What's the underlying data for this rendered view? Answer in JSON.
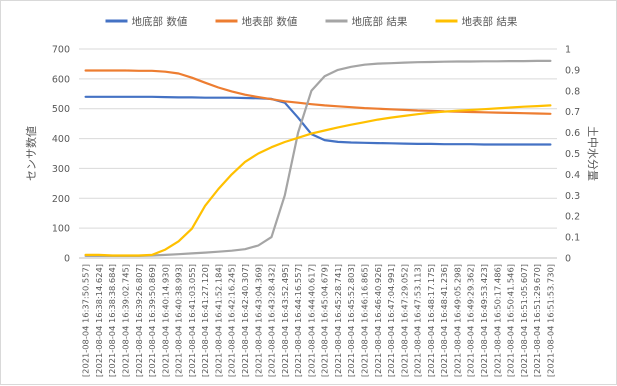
{
  "chart_data": {
    "type": "line",
    "title": "",
    "ylabel_left": "センサ数値",
    "ylabel_right": "土中水分量",
    "ylim_left": [
      0,
      700
    ],
    "ylim_right": [
      0,
      1
    ],
    "yticks_left": [
      "0",
      "100",
      "200",
      "300",
      "400",
      "500",
      "600",
      "700"
    ],
    "yticks_right": [
      "0",
      "0.1",
      "0.2",
      "0.3",
      "0.4",
      "0.5",
      "0.6",
      "0.7",
      "0.8",
      "0.9",
      "1"
    ],
    "legend_position": "top",
    "grid": true,
    "x_tick_labels": [
      "[2021-08-04 16:37:50.557]",
      "[2021-08-04 16:38:14.624]",
      "[2021-08-04 16:38:38.684]",
      "[2021-08-04 16:39:02.745]",
      "[2021-08-04 16:39:26.807]",
      "[2021-08-04 16:39:50.869]",
      "[2021-08-04 16:40:14.930]",
      "[2021-08-04 16:40:38.993]",
      "[2021-08-04 16:41:03.055]",
      "[2021-08-04 16:41:27.120]",
      "[2021-08-04 16:41:52.184]",
      "[2021-08-04 16:42:16.245]",
      "[2021-08-04 16:42:40.307]",
      "[2021-08-04 16:43:04.369]",
      "[2021-08-04 16:43:28.432]",
      "[2021-08-04 16:43:52.495]",
      "[2021-08-04 16:44:16.557]",
      "[2021-08-04 16:44:40.617]",
      "[2021-08-04 16:45:04.679]",
      "[2021-08-04 16:45:28.741]",
      "[2021-08-04 16:45:52.803]",
      "[2021-08-04 16:46:16.865]",
      "[2021-08-04 16:46:40.926]",
      "[2021-08-04 16:47:04.991]",
      "[2021-08-04 16:47:29.052]",
      "[2021-08-04 16:47:53.113]",
      "[2021-08-04 16:48:17.175]",
      "[2021-08-04 16:48:41.236]",
      "[2021-08-04 16:49:05.298]",
      "[2021-08-04 16:49:29.362]",
      "[2021-08-04 16:49:53.423]",
      "[2021-08-04 16:50:17.486]",
      "[2021-08-04 16:50:41.546]",
      "[2021-08-04 16:51:05.607]",
      "[2021-08-04 16:51:29.670]",
      "[2021-08-04 16:51:53.730]"
    ],
    "series": [
      {
        "name": "地底部 数値",
        "axis": "left",
        "color": "#4472c4",
        "values": [
          540,
          540,
          540,
          540,
          540,
          540,
          539,
          538,
          538,
          537,
          537,
          537,
          536,
          535,
          533,
          520,
          470,
          415,
          395,
          389,
          387,
          386,
          385,
          384,
          383,
          382,
          382,
          381,
          381,
          381,
          380,
          380,
          380,
          380,
          380,
          380
        ]
      },
      {
        "name": "地表部 数値",
        "axis": "left",
        "color": "#ed7d31",
        "values": [
          628,
          628,
          628,
          628,
          627,
          627,
          624,
          618,
          604,
          587,
          571,
          558,
          547,
          539,
          532,
          525,
          520,
          515,
          511,
          508,
          505,
          502,
          500,
          498,
          496,
          494,
          493,
          491,
          490,
          489,
          488,
          487,
          486,
          485,
          484,
          483
        ]
      },
      {
        "name": "地底部 結果",
        "axis": "right",
        "color": "#a5a5a5",
        "values": [
          0.01,
          0.01,
          0.01,
          0.01,
          0.01,
          0.012,
          0.015,
          0.018,
          0.022,
          0.026,
          0.03,
          0.035,
          0.042,
          0.06,
          0.1,
          0.3,
          0.6,
          0.8,
          0.87,
          0.9,
          0.915,
          0.925,
          0.93,
          0.932,
          0.935,
          0.937,
          0.938,
          0.939,
          0.94,
          0.94,
          0.941,
          0.941,
          0.942,
          0.942,
          0.943,
          0.943
        ]
      },
      {
        "name": "地表部 結果",
        "axis": "right",
        "color": "#ffc000",
        "values": [
          0.015,
          0.015,
          0.012,
          0.012,
          0.012,
          0.015,
          0.04,
          0.08,
          0.14,
          0.25,
          0.33,
          0.4,
          0.46,
          0.5,
          0.53,
          0.555,
          0.575,
          0.595,
          0.61,
          0.625,
          0.638,
          0.65,
          0.662,
          0.672,
          0.68,
          0.688,
          0.695,
          0.7,
          0.705,
          0.708,
          0.712,
          0.716,
          0.72,
          0.724,
          0.727,
          0.73
        ]
      }
    ]
  }
}
